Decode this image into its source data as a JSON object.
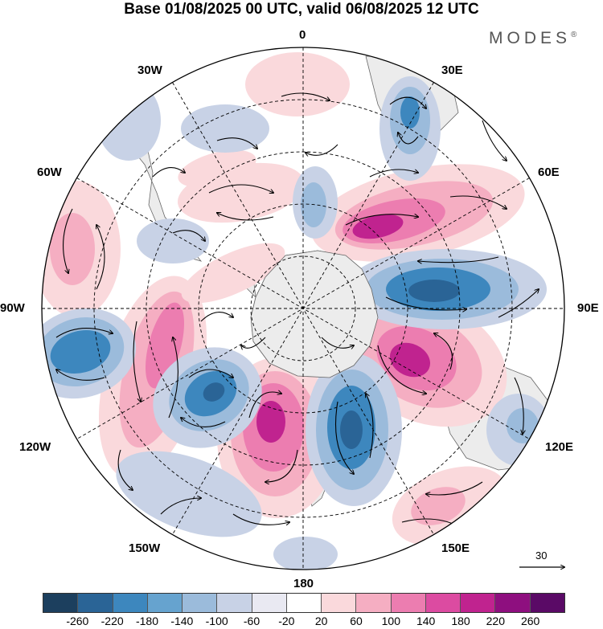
{
  "title": "Base 01/08/2025 00 UTC, valid 06/08/2025 12 UTC",
  "brand": "MODES",
  "brand_mark": "®",
  "longitude_labels": {
    "top": "0",
    "top_left": "30W",
    "top_right": "30E",
    "upper_left": "60W",
    "upper_right": "60E",
    "left": "90W",
    "right": "90E",
    "lower_left": "120W",
    "lower_right": "120E",
    "bottom_left": "150W",
    "bottom_right": "150E",
    "bottom": "180"
  },
  "wind_reference": {
    "label": "30"
  },
  "colorbar": {
    "ticks": [
      "-260",
      "-220",
      "-180",
      "-140",
      "-100",
      "-60",
      "-20",
      "20",
      "60",
      "100",
      "140",
      "180",
      "220",
      "260"
    ],
    "colors": [
      "#1c3f5e",
      "#2a6496",
      "#3d87be",
      "#66a3cf",
      "#9bbbdb",
      "#c8d2e6",
      "#e9e9f2",
      "#ffffff",
      "#fad9dc",
      "#f5aec2",
      "#ec7db0",
      "#dc4ba1",
      "#c0238f",
      "#8e0f7f",
      "#5a0a66"
    ]
  },
  "map_colors": {
    "land": "#ececec",
    "pos_light": "#fad9dc",
    "pos_mid": "#f5aec2",
    "pos_strong": "#ec7db0",
    "pos_max": "#c0238f",
    "neg_light": "#c8d2e6",
    "neg_mid": "#9bbbdb",
    "neg_strong": "#3d87be",
    "neg_max": "#2a6496"
  }
}
